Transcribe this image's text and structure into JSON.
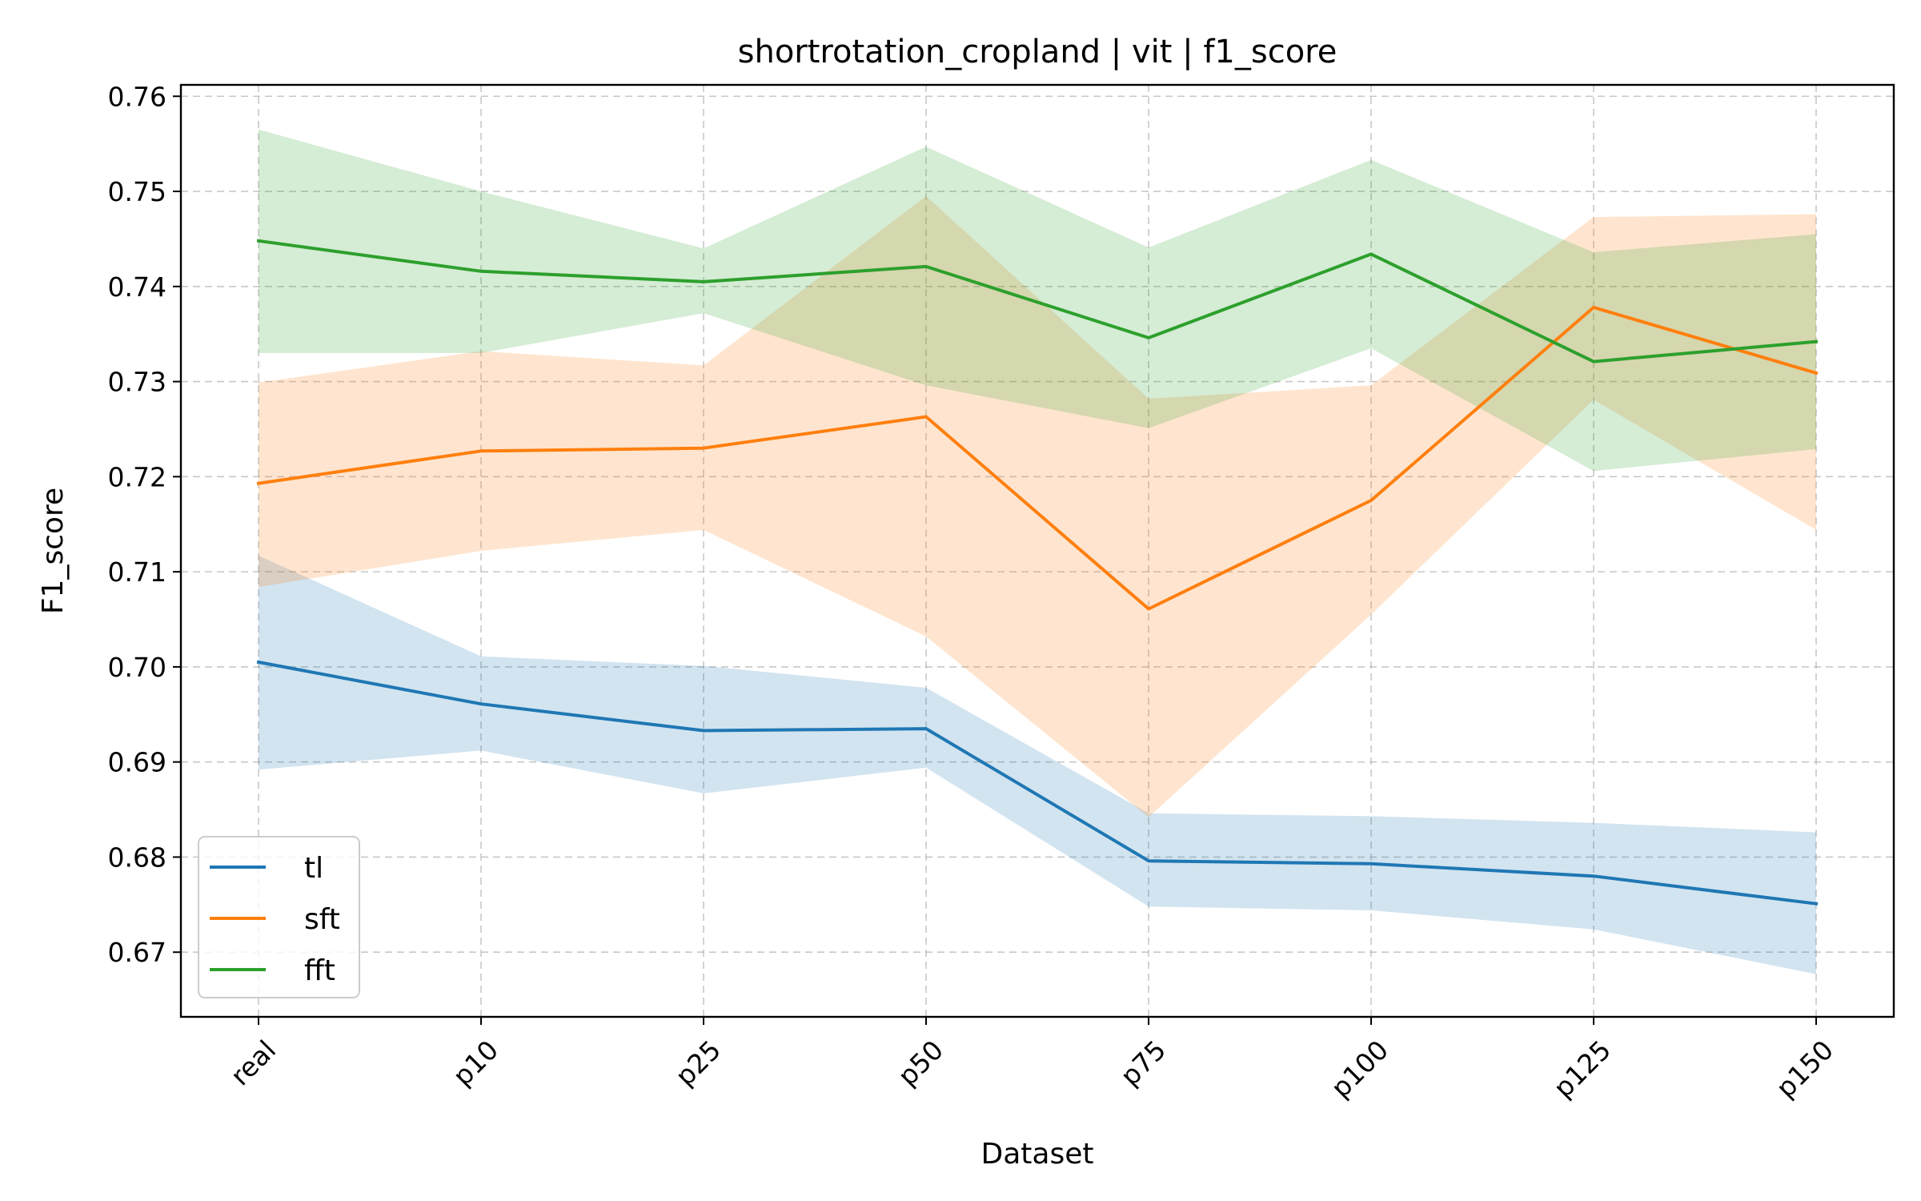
{
  "chart_data": {
    "type": "line",
    "title": "shortrotation_cropland | vit | f1_score",
    "xlabel": "Dataset",
    "ylabel": "F1_score",
    "categories": [
      "real",
      "p10",
      "p25",
      "p50",
      "p75",
      "p100",
      "p125",
      "p150"
    ],
    "ylim": [
      0.6632,
      0.7612
    ],
    "yticks": [
      0.67,
      0.68,
      0.69,
      0.7,
      0.71,
      0.72,
      0.73,
      0.74,
      0.75,
      0.76
    ],
    "ytick_labels": [
      "0.67",
      "0.68",
      "0.69",
      "0.70",
      "0.71",
      "0.72",
      "0.73",
      "0.74",
      "0.75",
      "0.76"
    ],
    "grid": true,
    "legend_position": "lower-left",
    "series": [
      {
        "name": "tl",
        "color": "#1f77b4",
        "values": [
          0.7005,
          0.6961,
          0.6933,
          0.6935,
          0.6796,
          0.6793,
          0.678,
          0.6751
        ],
        "lower": [
          0.6892,
          0.6912,
          0.6867,
          0.6894,
          0.6748,
          0.6744,
          0.6724,
          0.6677
        ],
        "upper": [
          0.7117,
          0.7011,
          0.7001,
          0.6978,
          0.6846,
          0.6843,
          0.6836,
          0.6826
        ]
      },
      {
        "name": "sft",
        "color": "#ff7f0e",
        "values": [
          0.7193,
          0.7227,
          0.723,
          0.7263,
          0.7061,
          0.7175,
          0.7378,
          0.7309
        ],
        "lower": [
          0.7084,
          0.7122,
          0.7144,
          0.7032,
          0.6842,
          0.7055,
          0.7281,
          0.7144
        ],
        "upper": [
          0.7299,
          0.7332,
          0.7317,
          0.7495,
          0.7282,
          0.7296,
          0.7473,
          0.7476
        ]
      },
      {
        "name": "fft",
        "color": "#2ca02c",
        "values": [
          0.7448,
          0.7416,
          0.7405,
          0.7421,
          0.7346,
          0.7434,
          0.7321,
          0.7342
        ],
        "lower": [
          0.733,
          0.733,
          0.7372,
          0.7296,
          0.7251,
          0.7335,
          0.7206,
          0.7229
        ],
        "upper": [
          0.7565,
          0.75,
          0.744,
          0.7547,
          0.7441,
          0.7533,
          0.7436,
          0.7455
        ]
      }
    ]
  }
}
